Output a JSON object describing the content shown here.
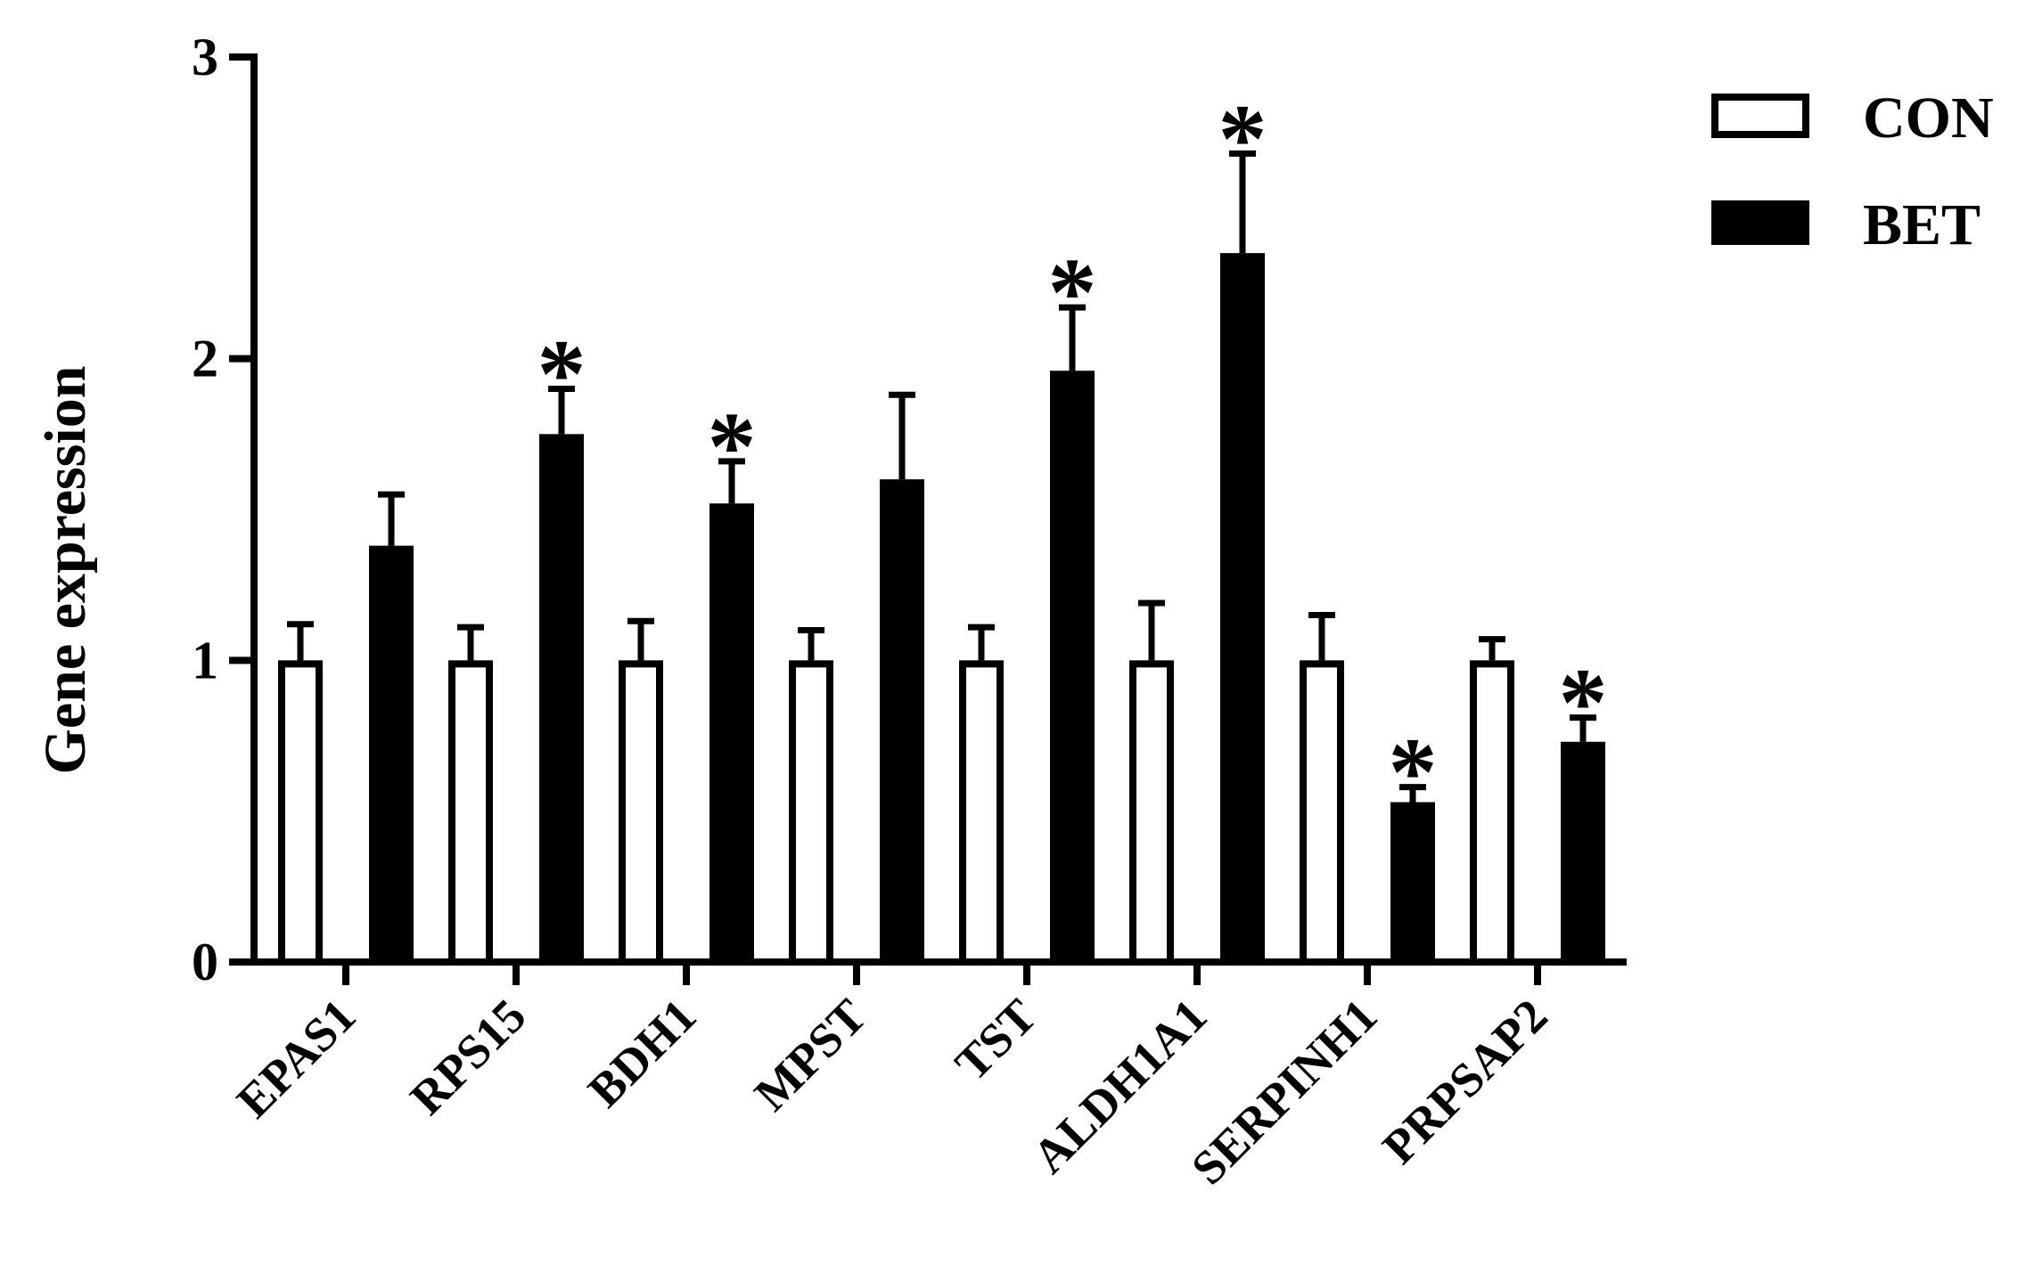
{
  "chart_data": {
    "type": "bar",
    "ylabel": "Gene expression",
    "xlabel": "",
    "ylim": [
      0,
      3
    ],
    "yticks": [
      0,
      1,
      2,
      3
    ],
    "categories": [
      "EPAS1",
      "RPS15",
      "BDH1",
      "MPST",
      "TST",
      "ALDH1A1",
      "SERPINH1",
      "PRPSAP2"
    ],
    "series": [
      {
        "name": "CON",
        "fill": "#ffffff",
        "stroke": "#000000",
        "values": [
          1.0,
          1.0,
          1.0,
          1.0,
          1.0,
          1.0,
          1.0,
          1.0
        ],
        "errors": [
          0.12,
          0.11,
          0.13,
          0.1,
          0.11,
          0.19,
          0.15,
          0.07
        ]
      },
      {
        "name": "BET",
        "fill": "#000000",
        "stroke": "#000000",
        "values": [
          1.38,
          1.75,
          1.52,
          1.6,
          1.96,
          2.35,
          0.53,
          0.73
        ],
        "errors": [
          0.17,
          0.15,
          0.14,
          0.28,
          0.21,
          0.33,
          0.05,
          0.08
        ]
      }
    ],
    "significance": [
      {
        "category": "RPS15",
        "series": "BET",
        "label": "*"
      },
      {
        "category": "BDH1",
        "series": "BET",
        "label": "*"
      },
      {
        "category": "TST",
        "series": "BET",
        "label": "*"
      },
      {
        "category": "ALDH1A1",
        "series": "BET",
        "label": "*"
      },
      {
        "category": "SERPINH1",
        "series": "BET",
        "label": "*"
      },
      {
        "category": "PRPSAP2",
        "series": "BET",
        "label": "*"
      }
    ],
    "legend_position": "top-right",
    "grid": false
  }
}
